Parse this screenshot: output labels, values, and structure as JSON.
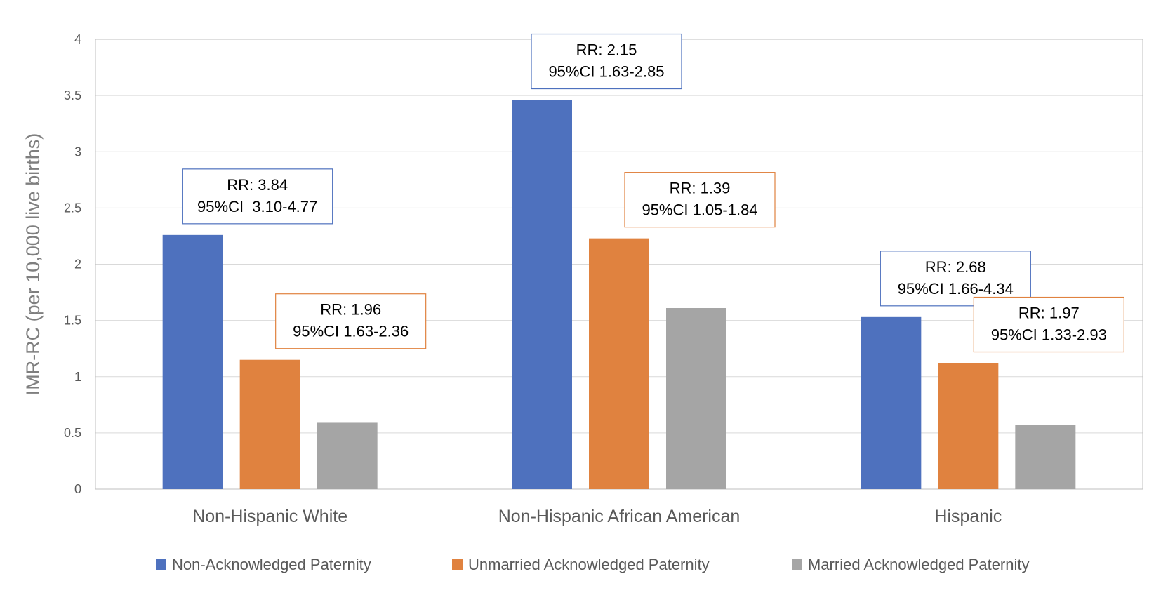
{
  "chart_data": {
    "type": "bar",
    "title": "",
    "xlabel": "",
    "ylabel": "IMR-RC (per 10,000 live births)",
    "ylim": [
      0,
      4
    ],
    "yticks": [
      "0",
      "0.5",
      "1",
      "1.5",
      "2",
      "2.5",
      "3",
      "3.5",
      "4"
    ],
    "grid": true,
    "legend_position": "bottom",
    "categories": [
      "Non-Hispanic White",
      "Non-Hispanic African American",
      "Hispanic"
    ],
    "series": [
      {
        "name": "Non-Acknowledged Paternity",
        "color": "#4E71BE",
        "values": [
          2.26,
          3.46,
          1.53
        ]
      },
      {
        "name": "Unmarried Acknowledged Paternity",
        "color": "#E0823F",
        "values": [
          1.15,
          2.23,
          1.12
        ]
      },
      {
        "name": "Married Acknowledged Paternity",
        "color": "#A5A5A5",
        "values": [
          0.59,
          1.61,
          0.57
        ]
      }
    ],
    "annotations": [
      {
        "category": 0,
        "series": 0,
        "line1": "RR: 3.84",
        "line2": "95%CI  3.10-4.77"
      },
      {
        "category": 0,
        "series": 1,
        "line1": "RR: 1.96",
        "line2": "95%CI 1.63-2.36"
      },
      {
        "category": 1,
        "series": 0,
        "line1": "RR: 2.15",
        "line2": "95%CI 1.63-2.85"
      },
      {
        "category": 1,
        "series": 1,
        "line1": "RR: 1.39",
        "line2": "95%CI 1.05-1.84"
      },
      {
        "category": 2,
        "series": 0,
        "line1": "RR: 2.68",
        "line2": "95%CI 1.66-4.34"
      },
      {
        "category": 2,
        "series": 1,
        "line1": "RR: 1.97",
        "line2": "95%CI 1.33-2.93"
      }
    ]
  }
}
